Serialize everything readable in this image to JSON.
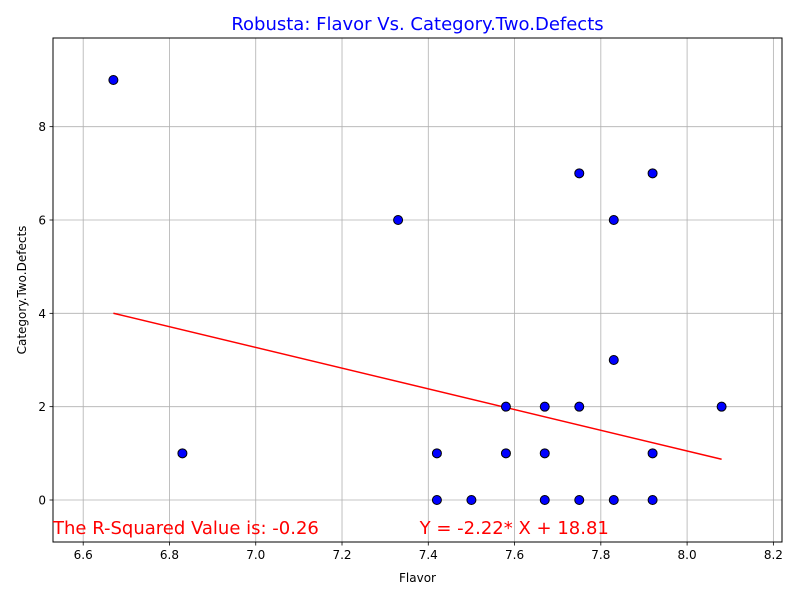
{
  "chart_data": {
    "type": "scatter",
    "title": "Robusta: Flavor Vs. Category.Two.Defects",
    "title_color": "#0000ff",
    "xlabel": "Flavor",
    "ylabel": "Category.Two.Defects",
    "xlim": [
      6.53,
      8.22
    ],
    "ylim": [
      -0.9,
      9.9
    ],
    "xticks": [
      6.6,
      6.8,
      7.0,
      7.2,
      7.4,
      7.6,
      7.8,
      8.0,
      8.2
    ],
    "xtick_labels": [
      "6.6",
      "6.8",
      "7.0",
      "7.2",
      "7.4",
      "7.6",
      "7.8",
      "8.0",
      "8.2"
    ],
    "yticks": [
      0,
      2,
      4,
      6,
      8
    ],
    "ytick_labels": [
      "0",
      "2",
      "4",
      "6",
      "8"
    ],
    "grid": true,
    "marker_color": "#0000ff",
    "marker_edge_color": "#000000",
    "points": [
      {
        "x": 6.67,
        "y": 9
      },
      {
        "x": 6.83,
        "y": 1
      },
      {
        "x": 7.33,
        "y": 6
      },
      {
        "x": 7.42,
        "y": 1
      },
      {
        "x": 7.42,
        "y": 0
      },
      {
        "x": 7.5,
        "y": 0
      },
      {
        "x": 7.58,
        "y": 2
      },
      {
        "x": 7.58,
        "y": 1
      },
      {
        "x": 7.67,
        "y": 2
      },
      {
        "x": 7.67,
        "y": 1
      },
      {
        "x": 7.67,
        "y": 0
      },
      {
        "x": 7.75,
        "y": 7
      },
      {
        "x": 7.75,
        "y": 2
      },
      {
        "x": 7.75,
        "y": 0
      },
      {
        "x": 7.83,
        "y": 6
      },
      {
        "x": 7.83,
        "y": 3
      },
      {
        "x": 7.83,
        "y": 0
      },
      {
        "x": 7.92,
        "y": 7
      },
      {
        "x": 7.92,
        "y": 1
      },
      {
        "x": 7.92,
        "y": 0
      },
      {
        "x": 8.08,
        "y": 2
      }
    ],
    "regression": {
      "slope": -2.22,
      "intercept": 18.81,
      "x_range": [
        6.67,
        8.08
      ],
      "color": "#ff0000"
    },
    "annotations": [
      {
        "text": "The R-Squared Value is: -0.26",
        "x": 6.53,
        "y": -0.6,
        "color": "#ff0000"
      },
      {
        "text": "Y = -2.22* X + 18.81",
        "x": 7.38,
        "y": -0.6,
        "color": "#ff0000"
      }
    ]
  }
}
